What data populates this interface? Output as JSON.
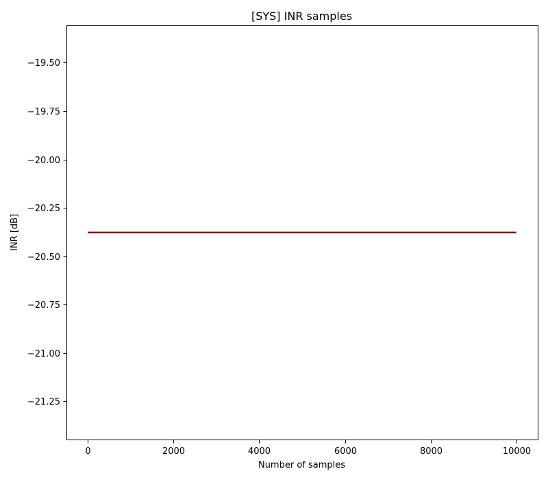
{
  "chart_data": {
    "type": "line",
    "title": "[SYS] INR samples",
    "xlabel": "Number of samples",
    "ylabel": "INR [dB]",
    "xlim": [
      -500,
      10500
    ],
    "ylim": [
      -21.447,
      -19.307
    ],
    "x_ticks": [
      0,
      2000,
      4000,
      6000,
      8000,
      10000
    ],
    "x_tick_labels": [
      "0",
      "2000",
      "4000",
      "6000",
      "8000",
      "10000"
    ],
    "y_ticks": [
      -19.5,
      -19.75,
      -20.0,
      -20.25,
      -20.5,
      -20.75,
      -21.0,
      -21.25
    ],
    "y_tick_labels": [
      "−19.50",
      "−19.75",
      "−20.00",
      "−20.25",
      "−20.50",
      "−20.75",
      "−21.00",
      "−21.25"
    ],
    "grid": false,
    "series": [
      {
        "color": "#8b0000",
        "x": [
          0,
          10000
        ],
        "y": [
          -20.377,
          -20.377
        ]
      }
    ]
  }
}
